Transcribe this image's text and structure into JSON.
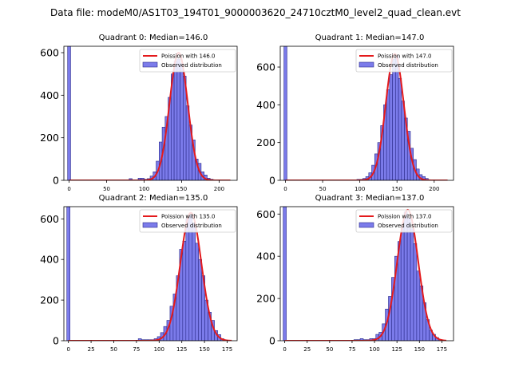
{
  "suptitle": "Data file: modeM0/AS1T03_194T01_9000003620_24710cztM0_level2_quad_clean.evt",
  "colors": {
    "bar_fill": "#7b7bea",
    "bar_edge": "#2a2a8a",
    "curve": "#e41a1c",
    "axis": "#000000"
  },
  "chart_data": [
    {
      "type": "bar",
      "title": "Quadrant 0: Median=146.0",
      "median": 146.0,
      "xlim": [
        -7,
        224
      ],
      "ylim": [
        0,
        630
      ],
      "xticks": [
        0,
        50,
        100,
        150,
        200
      ],
      "yticks": [
        0,
        200,
        400,
        600
      ],
      "bin_width": 4,
      "zero_bin_value": 630,
      "bins_start": 80,
      "values": [
        8,
        0,
        0,
        10,
        10,
        5,
        8,
        20,
        40,
        90,
        180,
        250,
        300,
        390,
        500,
        560,
        570,
        550,
        490,
        350,
        260,
        190,
        100,
        80,
        40,
        25,
        10,
        5,
        0
      ],
      "curve": {
        "mean": 146.0,
        "amplitude": 600,
        "sigma": 12.1,
        "x_from": 0,
        "x_to": 215
      },
      "legend": {
        "curve_label": "Poission with 146.0",
        "bars_label": "Observed distribution"
      }
    },
    {
      "type": "bar",
      "title": "Quadrant 1: Median=147.0",
      "median": 147.0,
      "xlim": [
        -7,
        226
      ],
      "ylim": [
        0,
        710
      ],
      "xticks": [
        0,
        50,
        100,
        150,
        200
      ],
      "yticks": [
        0,
        200,
        400,
        600
      ],
      "bin_width": 4,
      "zero_bin_value": 710,
      "bins_start": 96,
      "values": [
        5,
        5,
        10,
        20,
        40,
        80,
        140,
        200,
        290,
        400,
        480,
        560,
        640,
        660,
        540,
        420,
        330,
        260,
        170,
        110,
        60,
        30,
        20,
        10
      ],
      "curve": {
        "mean": 147.0,
        "amplitude": 670,
        "sigma": 12.1,
        "x_from": 0,
        "x_to": 218
      },
      "legend": {
        "curve_label": "Poission with 147.0",
        "bars_label": "Observed distribution"
      }
    },
    {
      "type": "bar",
      "title": "Quadrant 2: Median=135.0",
      "median": 135.0,
      "xlim": [
        -5,
        186
      ],
      "ylim": [
        0,
        660
      ],
      "xticks": [
        0,
        25,
        50,
        75,
        100,
        125,
        150,
        175
      ],
      "yticks": [
        0,
        200,
        400,
        600
      ],
      "bin_width": 3.5,
      "zero_bin_value": 660,
      "bins_start": 77,
      "values": [
        10,
        5,
        5,
        5,
        5,
        10,
        20,
        40,
        70,
        100,
        170,
        230,
        320,
        450,
        490,
        600,
        620,
        580,
        480,
        400,
        320,
        200,
        140,
        100,
        50,
        30,
        10
      ],
      "curve": {
        "mean": 135.0,
        "amplitude": 630,
        "sigma": 11.6,
        "x_from": 0,
        "x_to": 180
      },
      "legend": {
        "curve_label": "Poission with 135.0",
        "bars_label": "Observed distribution"
      }
    },
    {
      "type": "bar",
      "title": "Quadrant 3: Median=137.0",
      "median": 137.0,
      "xlim": [
        -5,
        188
      ],
      "ylim": [
        0,
        635
      ],
      "xticks": [
        0,
        25,
        50,
        75,
        100,
        125,
        150,
        175
      ],
      "yticks": [
        0,
        200,
        400,
        600
      ],
      "bin_width": 3.5,
      "zero_bin_value": 635,
      "bins_start": 77,
      "values": [
        5,
        5,
        10,
        5,
        5,
        10,
        10,
        30,
        40,
        80,
        150,
        210,
        300,
        400,
        470,
        540,
        610,
        580,
        530,
        460,
        330,
        260,
        180,
        100,
        50,
        30,
        15,
        5
      ],
      "curve": {
        "mean": 137.0,
        "amplitude": 620,
        "sigma": 11.7,
        "x_from": 0,
        "x_to": 180
      },
      "legend": {
        "curve_label": "Poission with 137.0",
        "bars_label": "Observed distribution"
      }
    }
  ]
}
